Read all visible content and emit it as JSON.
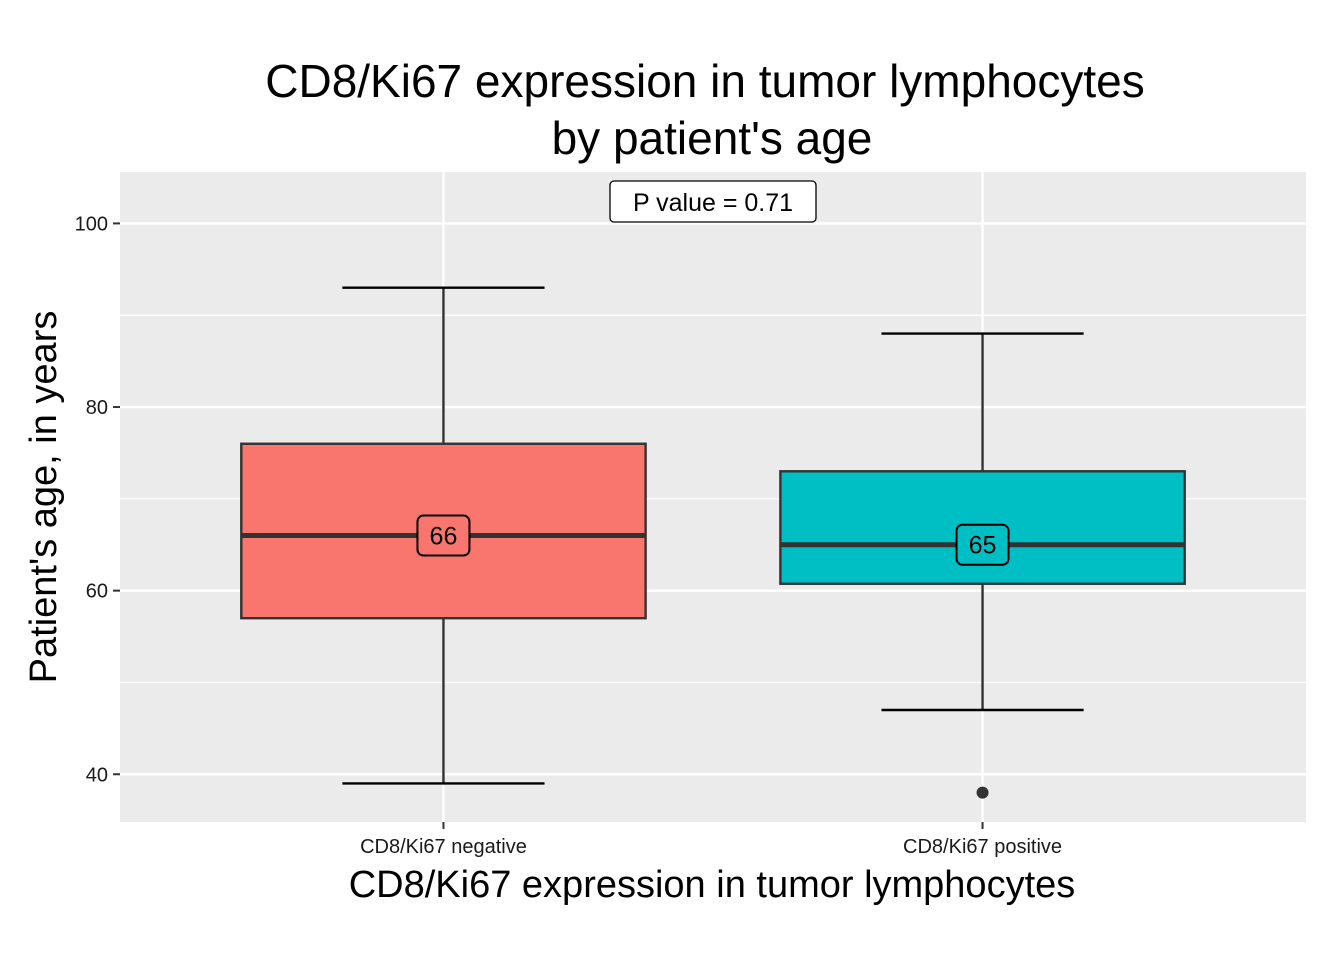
{
  "chart_data": {
    "type": "box",
    "title_lines": [
      "CD8/Ki67 expression in tumor lymphocytes",
      "by patient's age"
    ],
    "xlabel": "CD8/Ki67 expression in tumor lymphocytes",
    "ylabel": "Patient's age, in years",
    "ylim": [
      34.8,
      105.6
    ],
    "y_ticks": [
      40,
      60,
      80,
      100
    ],
    "grid": true,
    "legend": "none",
    "p_value_label": "P value = 0.71",
    "categories": [
      "CD8/Ki67 negative",
      "CD8/Ki67 positive"
    ],
    "boxes": [
      {
        "category": "CD8/Ki67 negative",
        "min": 39,
        "q1": 57,
        "median": 66,
        "q3": 76,
        "max": 93,
        "outliers": [],
        "fill": "#F8766D",
        "median_label": "66"
      },
      {
        "category": "CD8/Ki67 positive",
        "min": 47,
        "q1": 60.75,
        "median": 65,
        "q3": 73,
        "max": 88,
        "outliers": [
          38
        ],
        "fill": "#00BFC4",
        "median_label": "65"
      }
    ],
    "colors": {
      "panel": "#EBEBEB",
      "grid": "#FFFFFF",
      "stroke": "#333333"
    }
  }
}
